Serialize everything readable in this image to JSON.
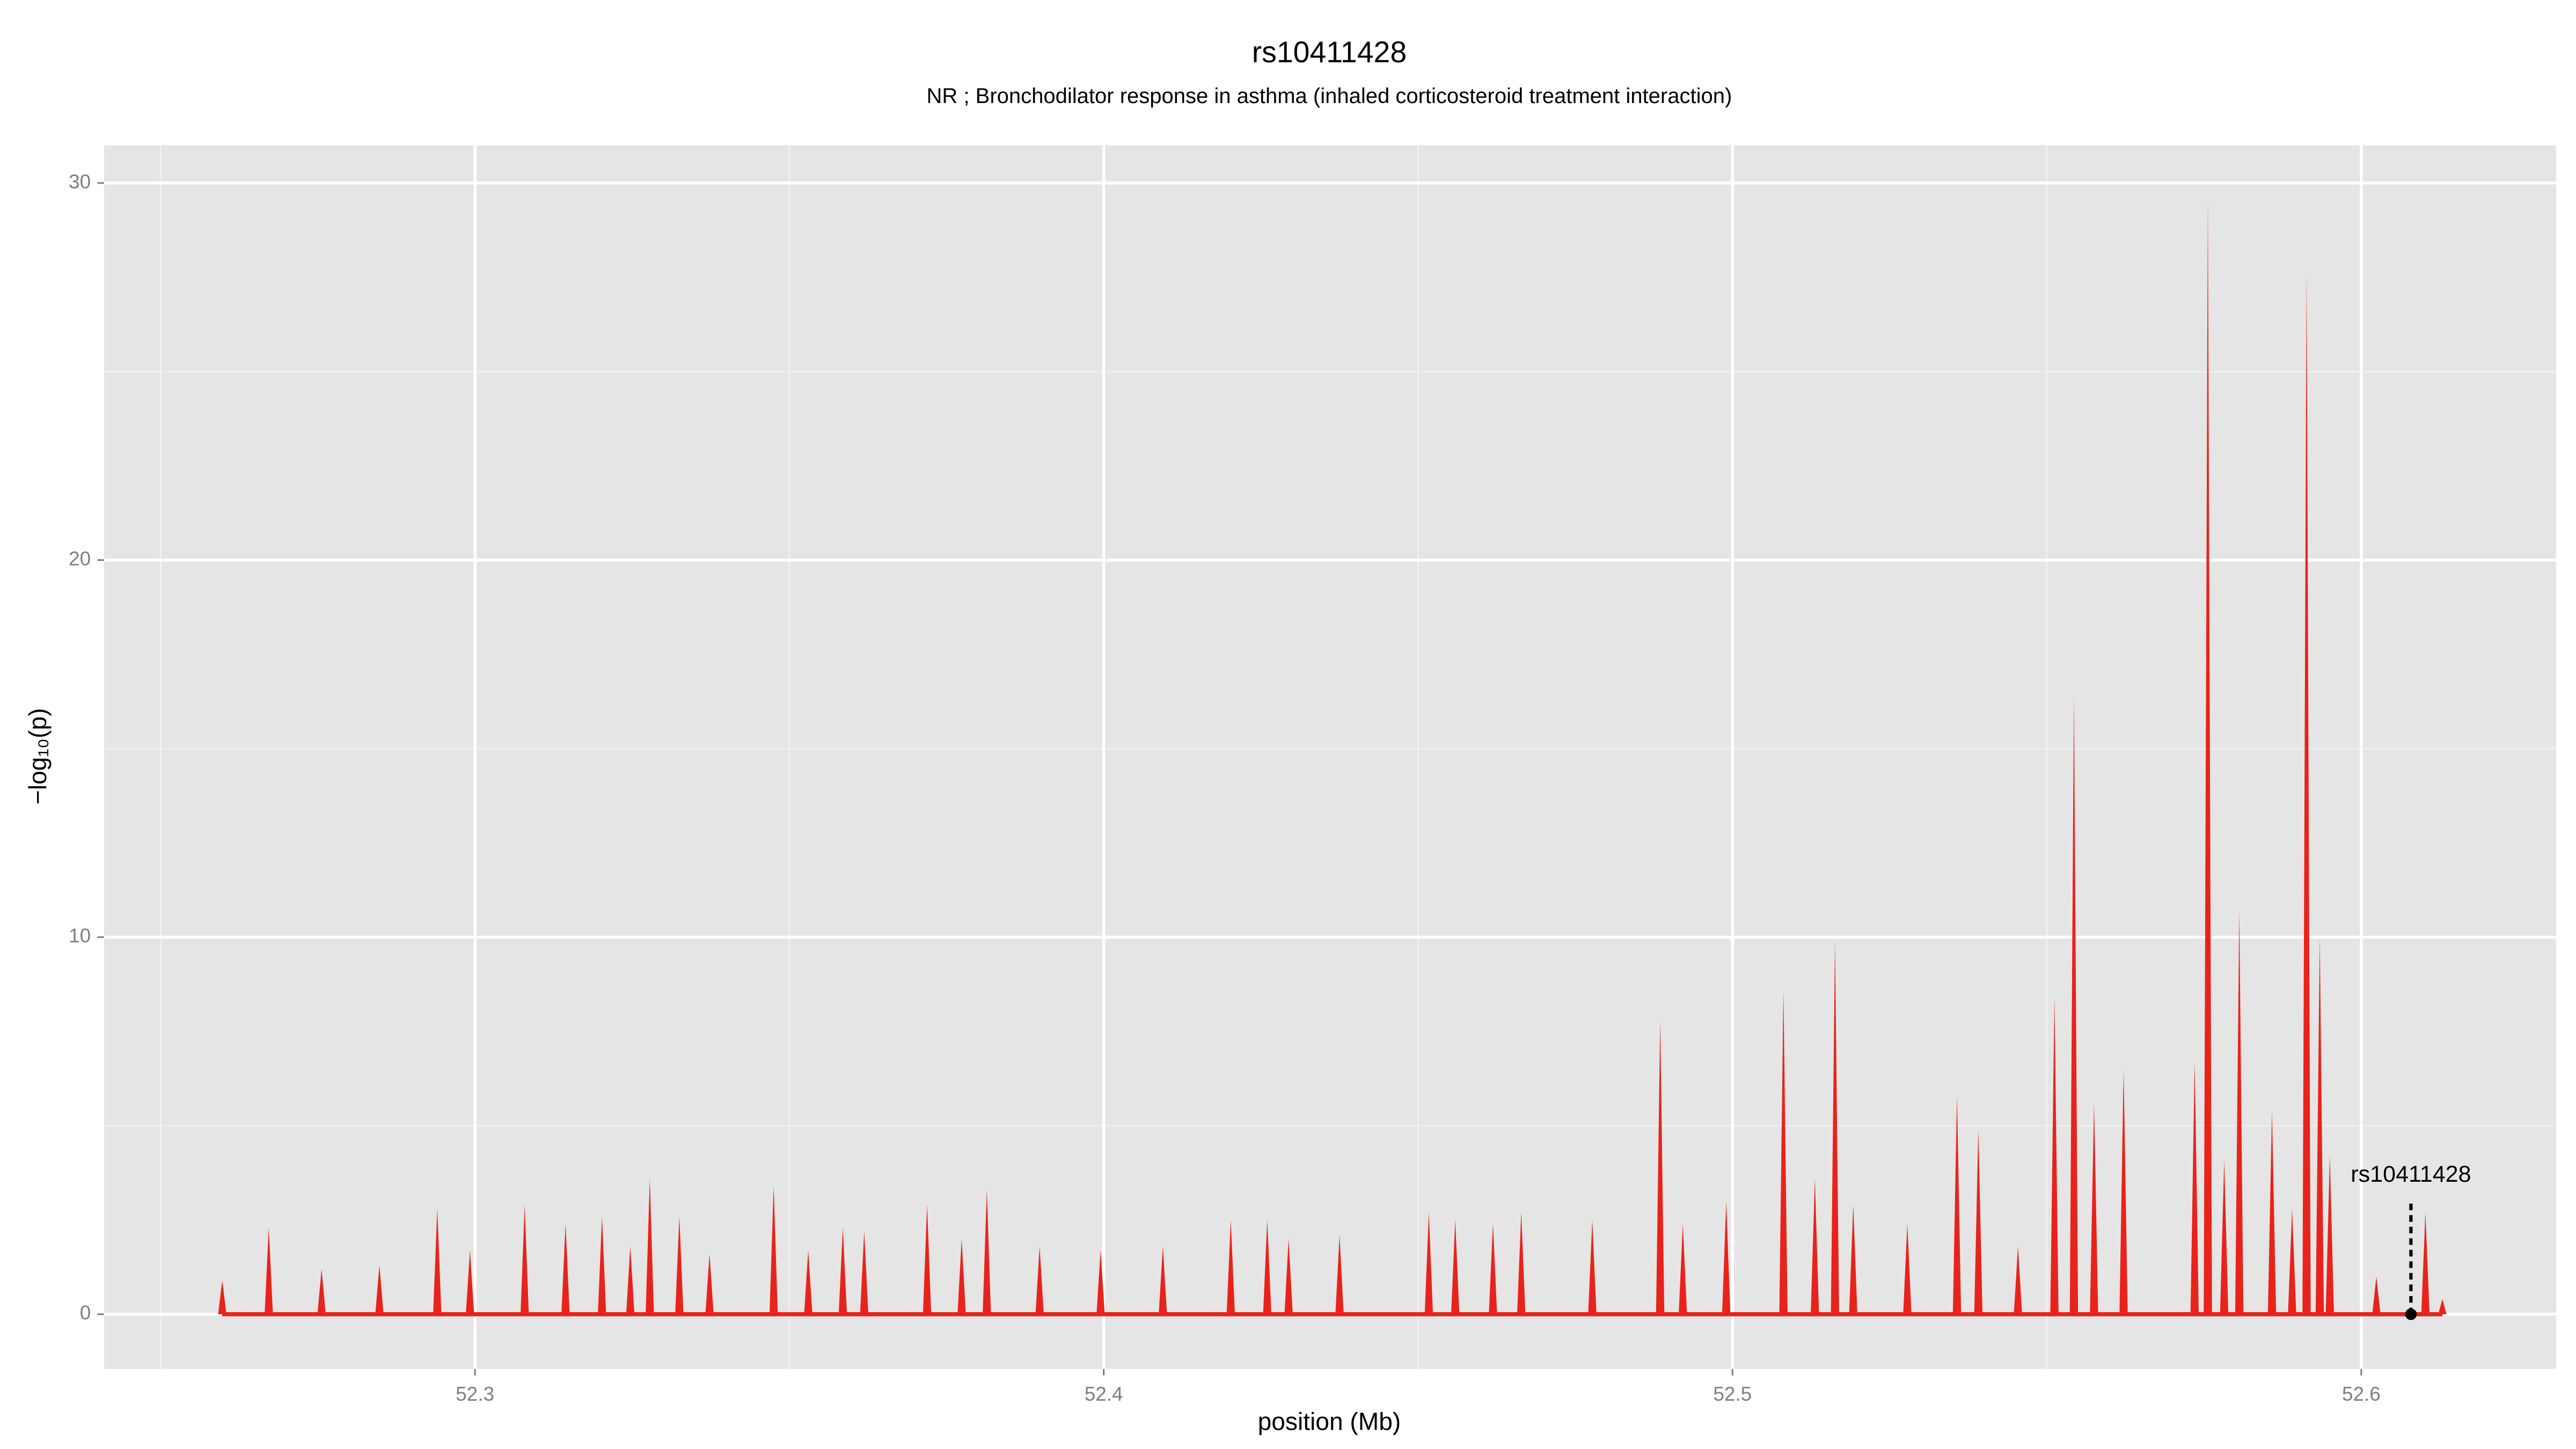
{
  "chart_data": {
    "type": "spike",
    "title": "rs10411428",
    "subtitle": "NR ; Bronchodilator response in asthma (inhaled corticosteroid treatment interaction)",
    "xlabel": "position (Mb)",
    "ylabel": "−log₁₀(p)",
    "color": "#e8231b",
    "grid": true,
    "xlim": [
      52.241,
      52.631
    ],
    "ylim": [
      -1.45,
      31.0
    ],
    "xticks": [
      52.3,
      52.4,
      52.5,
      52.6
    ],
    "yticks": [
      0,
      10,
      20,
      30
    ],
    "x_minor_grid": [
      52.25,
      52.35,
      52.45,
      52.55
    ],
    "y_minor_grid": [
      5,
      15,
      25
    ],
    "x": [
      52.2598,
      52.2672,
      52.2756,
      52.2848,
      52.294,
      52.2992,
      52.3079,
      52.3144,
      52.3202,
      52.3247,
      52.3278,
      52.3325,
      52.3373,
      52.3475,
      52.353,
      52.3585,
      52.3619,
      52.3719,
      52.3774,
      52.3814,
      52.3898,
      52.3995,
      52.4094,
      52.4202,
      52.426,
      52.4294,
      52.4375,
      52.4517,
      52.4559,
      52.4619,
      52.4664,
      52.4777,
      52.4885,
      52.4921,
      52.499,
      52.5081,
      52.5131,
      52.5163,
      52.5192,
      52.5278,
      52.5357,
      52.5391,
      52.5454,
      52.5512,
      52.5543,
      52.5575,
      52.5622,
      52.5735,
      52.5756,
      52.5782,
      52.5806,
      52.5858,
      52.589,
      52.5913,
      52.5934,
      52.595,
      52.6024,
      52.6102,
      52.6129
    ],
    "values": [
      0.9,
      2.3,
      1.2,
      1.3,
      2.8,
      1.7,
      2.9,
      2.4,
      2.6,
      1.8,
      3.6,
      2.6,
      1.6,
      3.4,
      1.7,
      2.3,
      2.2,
      2.9,
      2.0,
      3.3,
      1.8,
      1.7,
      1.8,
      2.5,
      2.5,
      2.0,
      2.1,
      2.7,
      2.5,
      2.4,
      2.7,
      2.5,
      7.8,
      2.4,
      3.0,
      8.6,
      3.6,
      9.9,
      2.9,
      2.4,
      5.8,
      4.9,
      1.8,
      8.4,
      16.4,
      5.6,
      6.5,
      6.7,
      29.6,
      4.1,
      10.7,
      5.4,
      2.8,
      27.7,
      10.0,
      4.2,
      1.0,
      2.7,
      0.4
    ],
    "annotation": {
      "text": "rs10411428",
      "x": 52.6079,
      "y": 0
    }
  }
}
